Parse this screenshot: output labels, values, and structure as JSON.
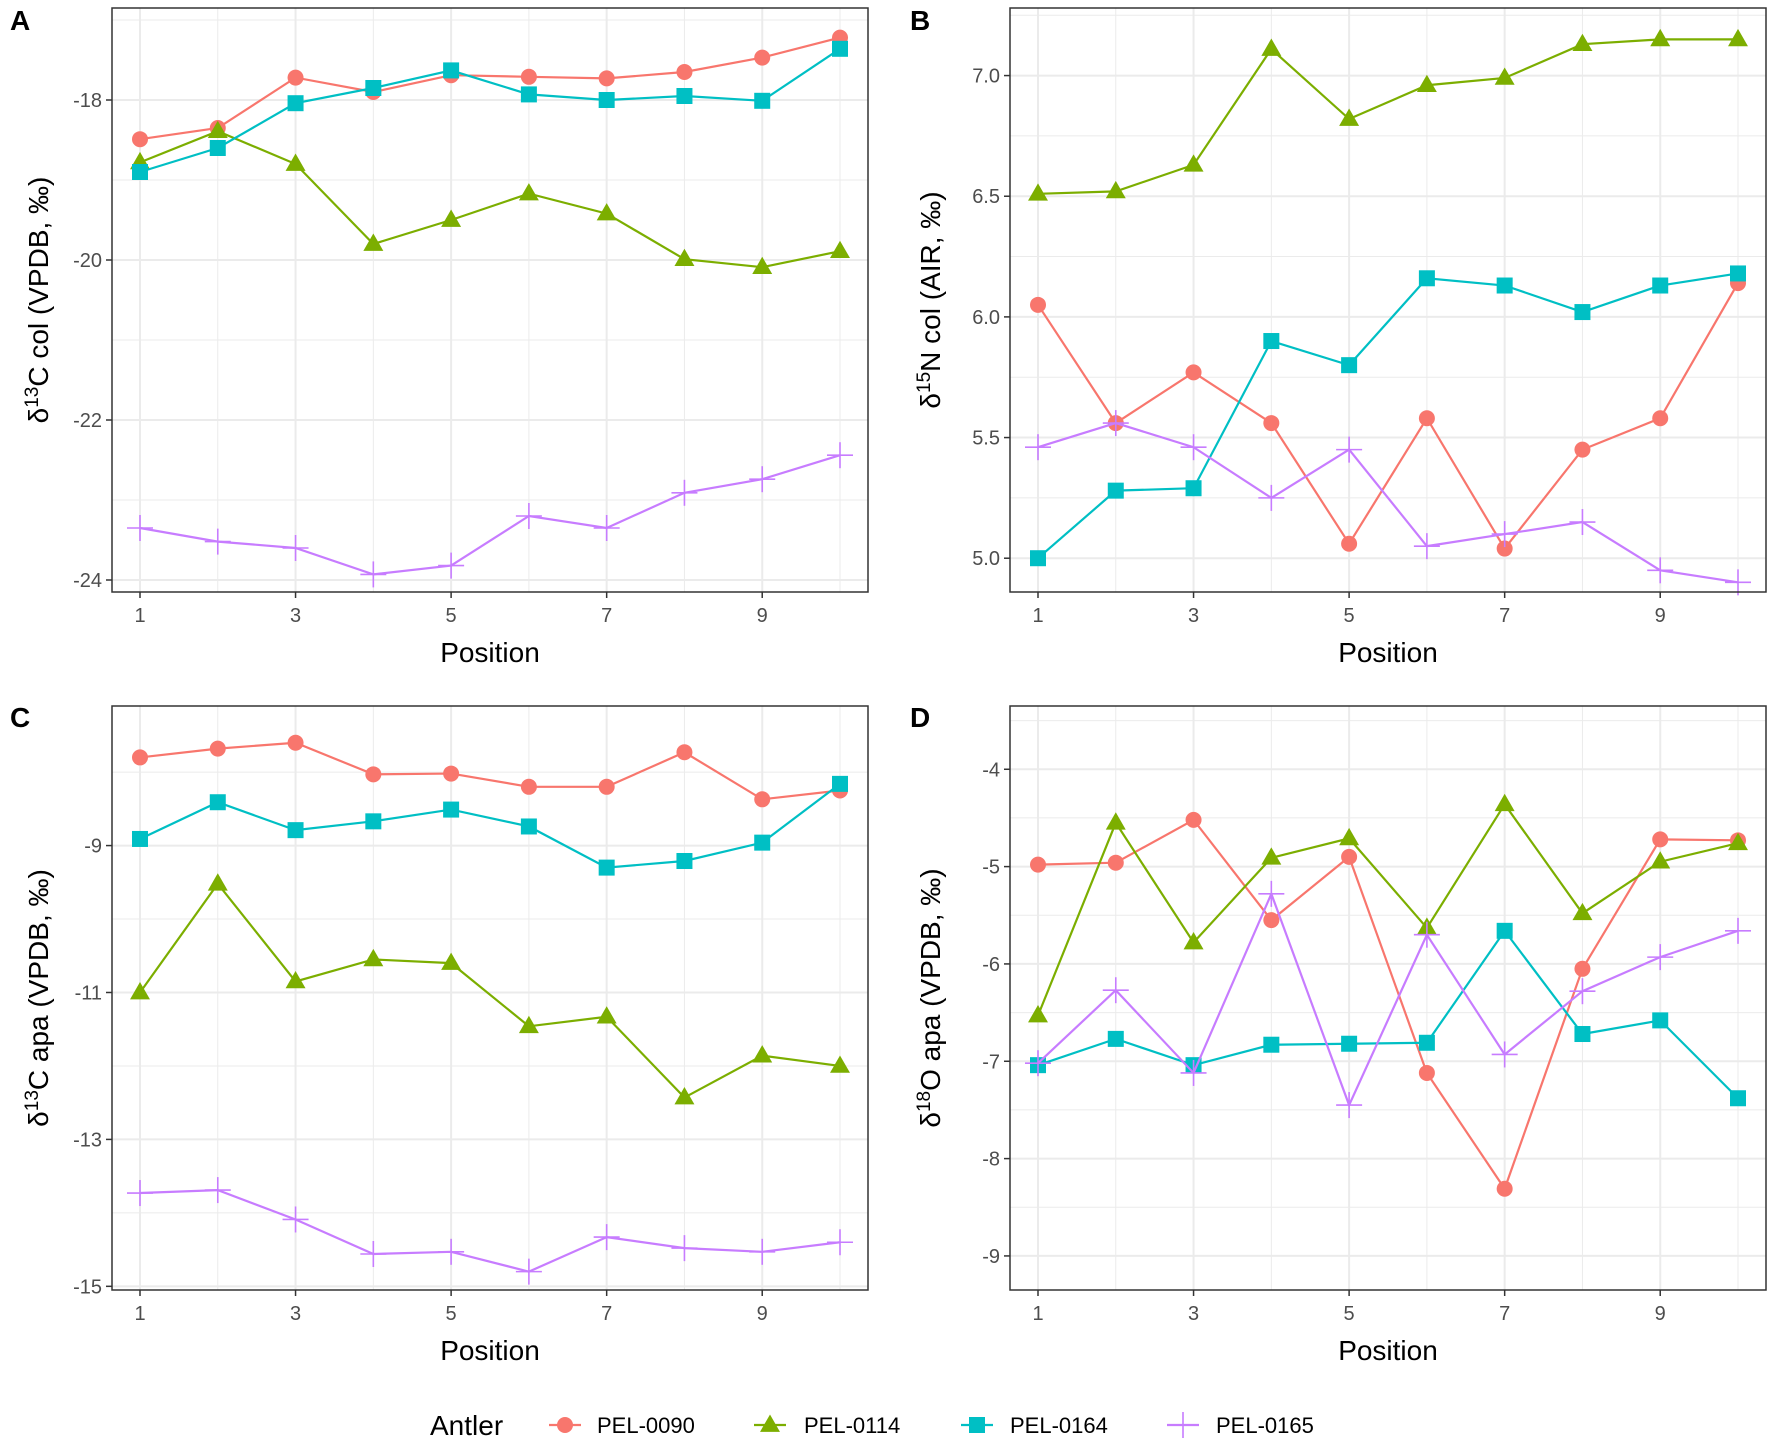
{
  "colors": {
    "PEL-0090": "#F8766D",
    "PEL-0114": "#7CAE00",
    "PEL-0164": "#00BFC4",
    "PEL-0165": "#C77CFF"
  },
  "legend": {
    "title": "Antler",
    "entries": [
      {
        "label": "PEL-0090",
        "marker": "circle"
      },
      {
        "label": "PEL-0114",
        "marker": "triangle"
      },
      {
        "label": "PEL-0164",
        "marker": "square"
      },
      {
        "label": "PEL-0165",
        "marker": "cross"
      }
    ]
  },
  "chart_data": [
    {
      "type": "line",
      "letter": "A",
      "title": "",
      "xlabel": "Position",
      "ylabel": {
        "delta": "δ",
        "sup": "13",
        "text": "C col (VPDB, ‰)"
      },
      "x": [
        1,
        2,
        3,
        4,
        5,
        6,
        7,
        8,
        9,
        10
      ],
      "xlim": [
        0.64,
        10.36
      ],
      "ylim": [
        -24.15,
        -16.85
      ],
      "xticks": [
        1,
        3,
        5,
        7,
        9
      ],
      "xtick_labels": [
        "1",
        "3",
        "5",
        "7",
        "9"
      ],
      "yticks": [
        -24,
        -22,
        -20,
        -18
      ],
      "ytick_labels": [
        "-24",
        "-22",
        "-20",
        "-18"
      ],
      "series": [
        {
          "name": "PEL-0090",
          "values": [
            -18.49,
            -18.35,
            -17.72,
            -17.9,
            -17.69,
            -17.71,
            -17.73,
            -17.65,
            -17.47,
            -17.22
          ]
        },
        {
          "name": "PEL-0114",
          "values": [
            -18.78,
            -18.39,
            -18.8,
            -19.8,
            -19.5,
            -19.17,
            -19.42,
            -19.99,
            -20.09,
            -19.89
          ]
        },
        {
          "name": "PEL-0164",
          "values": [
            -18.9,
            -18.6,
            -18.04,
            -17.85,
            -17.63,
            -17.93,
            -18.0,
            -17.95,
            -18.01,
            -17.36
          ]
        },
        {
          "name": "PEL-0165",
          "values": [
            -23.35,
            -23.52,
            -23.6,
            -23.93,
            -23.82,
            -23.2,
            -23.35,
            -22.91,
            -22.74,
            -22.44
          ]
        }
      ]
    },
    {
      "type": "line",
      "letter": "B",
      "title": "",
      "xlabel": "Position",
      "ylabel": {
        "delta": "δ",
        "sup": "15",
        "text": "N col (AIR, ‰)"
      },
      "x": [
        1,
        2,
        3,
        4,
        5,
        6,
        7,
        8,
        9,
        10
      ],
      "xlim": [
        0.64,
        10.36
      ],
      "ylim": [
        4.86,
        7.28
      ],
      "xticks": [
        1,
        3,
        5,
        7,
        9
      ],
      "xtick_labels": [
        "1",
        "3",
        "5",
        "7",
        "9"
      ],
      "yticks": [
        5.0,
        5.5,
        6.0,
        6.5,
        7.0
      ],
      "ytick_labels": [
        "5.0",
        "5.5",
        "6.0",
        "6.5",
        "7.0"
      ],
      "series": [
        {
          "name": "PEL-0090",
          "values": [
            6.05,
            5.56,
            5.77,
            5.56,
            5.06,
            5.58,
            5.04,
            5.45,
            5.58,
            6.14
          ]
        },
        {
          "name": "PEL-0114",
          "values": [
            6.51,
            6.52,
            6.63,
            7.11,
            6.82,
            6.96,
            6.99,
            7.13,
            7.15,
            7.15
          ]
        },
        {
          "name": "PEL-0164",
          "values": [
            5.0,
            5.28,
            5.29,
            5.9,
            5.8,
            6.16,
            6.13,
            6.02,
            6.13,
            6.18
          ]
        },
        {
          "name": "PEL-0165",
          "values": [
            5.46,
            5.56,
            5.46,
            5.25,
            5.45,
            5.05,
            5.1,
            5.15,
            4.95,
            4.9
          ]
        }
      ]
    },
    {
      "type": "line",
      "letter": "C",
      "title": "",
      "xlabel": "Position",
      "ylabel": {
        "delta": "δ",
        "sup": "13",
        "text": "C apa (VPDB, ‰)"
      },
      "x": [
        1,
        2,
        3,
        4,
        5,
        6,
        7,
        8,
        9,
        10
      ],
      "xlim": [
        0.64,
        10.36
      ],
      "ylim": [
        -15.05,
        -7.1
      ],
      "xticks": [
        1,
        3,
        5,
        7,
        9
      ],
      "xtick_labels": [
        "1",
        "3",
        "5",
        "7",
        "9"
      ],
      "yticks": [
        -15,
        -13,
        -11,
        -9
      ],
      "ytick_labels": [
        "-15",
        "-13",
        "-11",
        "-9"
      ],
      "series": [
        {
          "name": "PEL-0090",
          "values": [
            -7.8,
            -7.68,
            -7.6,
            -8.03,
            -8.02,
            -8.2,
            -8.2,
            -7.73,
            -8.37,
            -8.25
          ]
        },
        {
          "name": "PEL-0114",
          "values": [
            -11.0,
            -9.52,
            -10.85,
            -10.55,
            -10.6,
            -11.46,
            -11.33,
            -12.43,
            -11.86,
            -12.0
          ]
        },
        {
          "name": "PEL-0164",
          "values": [
            -8.91,
            -8.41,
            -8.79,
            -8.67,
            -8.51,
            -8.74,
            -9.3,
            -9.21,
            -8.96,
            -8.16
          ]
        },
        {
          "name": "PEL-0165",
          "values": [
            -13.73,
            -13.69,
            -14.09,
            -14.56,
            -14.53,
            -14.8,
            -14.33,
            -14.48,
            -14.53,
            -14.4
          ]
        }
      ]
    },
    {
      "type": "line",
      "letter": "D",
      "title": "",
      "xlabel": "Position",
      "ylabel": {
        "delta": "δ",
        "sup": "18",
        "text": "O apa (VPDB, ‰)"
      },
      "x": [
        1,
        2,
        3,
        4,
        5,
        6,
        7,
        8,
        9,
        10
      ],
      "xlim": [
        0.64,
        10.36
      ],
      "ylim": [
        -9.35,
        -3.35
      ],
      "xticks": [
        1,
        3,
        5,
        7,
        9
      ],
      "xtick_labels": [
        "1",
        "3",
        "5",
        "7",
        "9"
      ],
      "yticks": [
        -9,
        -8,
        -7,
        -6,
        -5,
        -4
      ],
      "ytick_labels": [
        "-9",
        "-8",
        "-7",
        "-6",
        "-5",
        "-4"
      ],
      "series": [
        {
          "name": "PEL-0090",
          "values": [
            -4.98,
            -4.96,
            -4.52,
            -5.55,
            -4.9,
            -7.12,
            -8.31,
            -6.05,
            -4.72,
            -4.73
          ]
        },
        {
          "name": "PEL-0114",
          "values": [
            -6.53,
            -4.55,
            -5.78,
            -4.91,
            -4.71,
            -5.63,
            -4.36,
            -5.48,
            -4.95,
            -4.76
          ]
        },
        {
          "name": "PEL-0164",
          "values": [
            -7.04,
            -6.77,
            -7.04,
            -6.83,
            -6.82,
            -6.81,
            -5.66,
            -6.72,
            -6.58,
            -7.38
          ]
        },
        {
          "name": "PEL-0165",
          "values": [
            -7.02,
            -6.27,
            -7.12,
            -5.28,
            -7.45,
            -5.7,
            -6.93,
            -6.28,
            -5.93,
            -5.66
          ]
        }
      ]
    }
  ]
}
